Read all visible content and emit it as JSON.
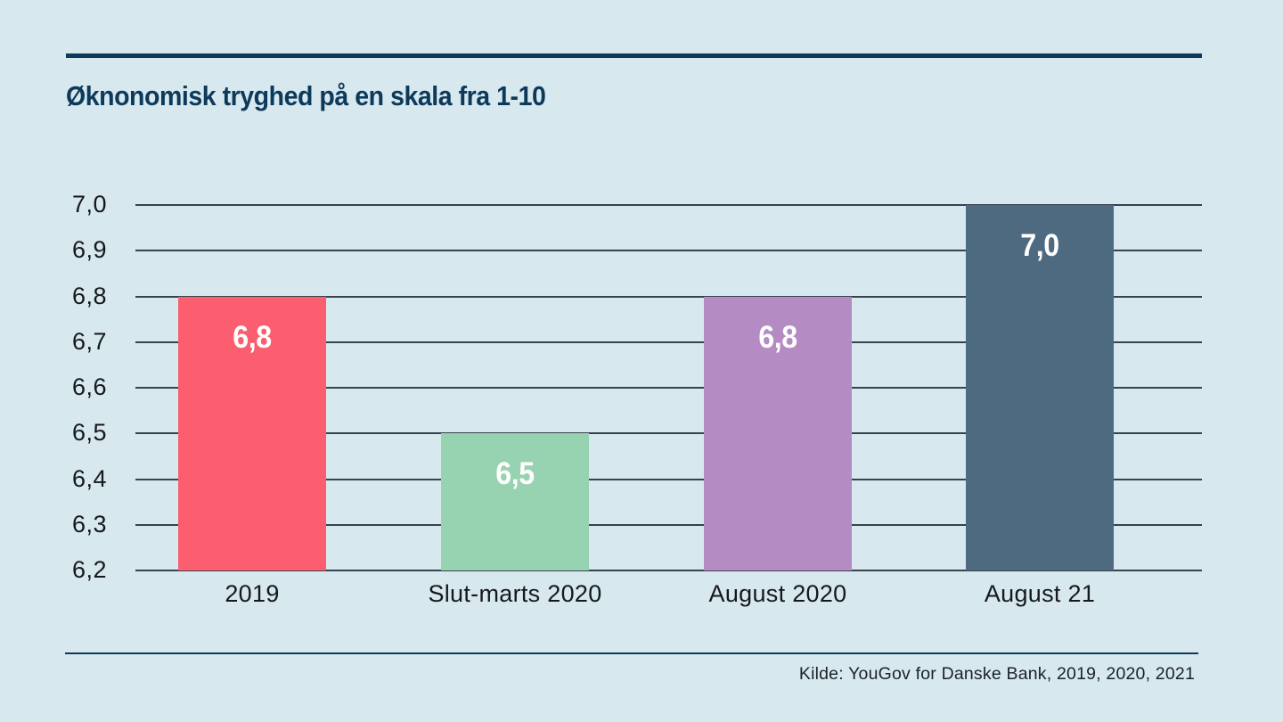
{
  "page": {
    "background": "#d7e8ef",
    "accent_navy": "#0d3a5a"
  },
  "header": {
    "title": "Øknonomisk tryghed på en skala fra 1-10"
  },
  "footer": {
    "source": "Kilde: YouGov for Danske Bank, 2019, 2020, 2021"
  },
  "chart_data": {
    "type": "bar",
    "title": "Øknonomisk tryghed på en skala fra 1-10",
    "categories": [
      "2019",
      "Slut-marts 2020",
      "August 2020",
      "August 21"
    ],
    "values": [
      6.8,
      6.5,
      6.8,
      7.0
    ],
    "value_labels": [
      "6,8",
      "6,5",
      "6,8",
      "7,0"
    ],
    "bar_colors": [
      "#fa5e6f",
      "#97d3b0",
      "#b48cc3",
      "#4d6a80"
    ],
    "xlabel": "",
    "ylabel": "",
    "ylim": [
      6.2,
      7.0
    ],
    "ytick_step": 0.1,
    "ytick_labels": [
      "7,0",
      "6,9",
      "6,8",
      "6,7",
      "6,6",
      "6,5",
      "6,4",
      "6,3",
      "6,2"
    ],
    "grid": true,
    "gridline_color": "#39424c",
    "legend_position": "none",
    "value_label_color": "#ffffff",
    "axis_text_color": "#15191c"
  }
}
